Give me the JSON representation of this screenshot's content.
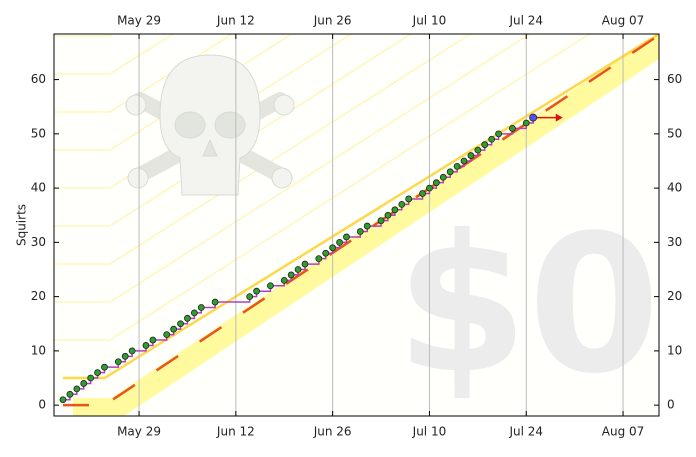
{
  "chart_data": {
    "type": "step",
    "y_label": "Squirts",
    "watermark": "$0",
    "x": [
      18,
      19,
      20,
      21,
      22,
      23,
      24,
      26,
      27,
      28,
      30,
      31,
      33,
      34,
      35,
      36,
      37,
      38,
      40,
      45,
      46,
      48,
      50,
      51,
      52,
      53,
      55,
      56,
      57,
      58,
      59,
      61,
      62,
      64,
      65,
      66,
      67,
      68,
      70,
      71,
      72,
      73,
      74,
      75,
      76,
      77,
      78,
      79,
      80,
      81,
      83,
      85,
      86
    ],
    "series": [
      {
        "color": "#2e9e2e",
        "values": [
          1,
          2,
          3,
          4,
          5,
          6,
          7,
          8,
          9,
          10,
          11,
          12,
          13,
          14,
          15,
          16,
          17,
          18,
          19,
          20,
          21,
          22,
          23,
          24,
          25,
          26,
          27,
          28,
          29,
          30,
          31,
          32,
          33,
          34,
          35,
          36,
          37,
          38,
          39,
          40,
          41,
          42,
          43,
          44,
          45,
          46,
          47,
          48,
          49,
          50,
          51,
          52,
          53
        ]
      }
    ],
    "road": {
      "color": "#e8541c",
      "x": [
        18,
        24,
        104.2
      ],
      "values": [
        0,
        0,
        68.2
      ]
    },
    "upper_line": {
      "color": "#ffd84a",
      "x": [
        18,
        24,
        104.2
      ],
      "values": [
        5,
        5,
        68.4
      ]
    },
    "projection": {
      "color": "#dd1111",
      "x": [
        86,
        89.7
      ],
      "values": [
        53,
        53
      ]
    },
    "xlim": [
      16.7,
      104.2
    ],
    "ylim": [
      -2,
      68.4
    ],
    "xticks": [
      {
        "value": 29,
        "label": "May 29"
      },
      {
        "value": 43,
        "label": "Jun 12"
      },
      {
        "value": 57,
        "label": "Jun 26"
      },
      {
        "value": 71,
        "label": "Jul 10"
      },
      {
        "value": 85,
        "label": "Jul 24"
      },
      {
        "value": 99,
        "label": "Aug 07"
      }
    ],
    "yticks": [
      0,
      10,
      20,
      30,
      40,
      50,
      60
    ],
    "grid": true
  }
}
